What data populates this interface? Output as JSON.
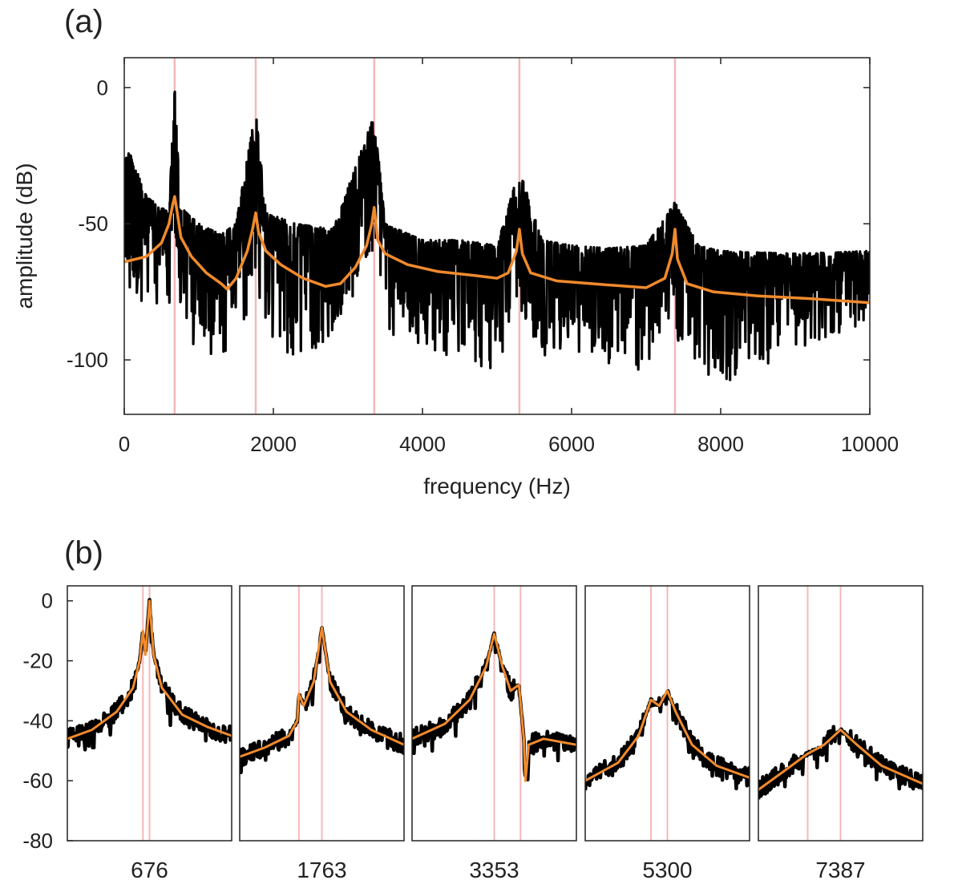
{
  "colors": {
    "measured": "#000000",
    "fit": "#f08a2c",
    "markers": "#f5b8b8",
    "axes": "#222222"
  },
  "chart_data": [
    {
      "panel": "(a)",
      "type": "line",
      "xlabel": "frequency (Hz)",
      "ylabel": "amplitude (dB)",
      "xlim": [
        0,
        10000
      ],
      "ylim": [
        -120,
        11
      ],
      "xticks": [
        0,
        2000,
        4000,
        6000,
        8000,
        10000
      ],
      "yticks": [
        0,
        -50,
        -100
      ],
      "grid": false,
      "legend": "none",
      "peak_markers": [
        676,
        1763,
        3353,
        5300,
        7387
      ],
      "series": [
        {
          "role": "fit",
          "x": [
            0,
            300,
            500,
            600,
            650,
            676,
            700,
            760,
            900,
            1100,
            1300,
            1380,
            1500,
            1650,
            1720,
            1763,
            1800,
            1900,
            2100,
            2400,
            2700,
            2900,
            3100,
            3250,
            3320,
            3353,
            3400,
            3500,
            3800,
            4200,
            4700,
            5000,
            5150,
            5260,
            5300,
            5340,
            5450,
            5800,
            6500,
            7000,
            7250,
            7350,
            7387,
            7420,
            7550,
            7900,
            8500,
            9200,
            10000
          ],
          "y": [
            -64,
            -62,
            -57,
            -50,
            -43,
            -40,
            -44,
            -55,
            -62,
            -68,
            -72,
            -74,
            -70,
            -60,
            -52,
            -46,
            -53,
            -60,
            -65,
            -70,
            -73,
            -72,
            -66,
            -58,
            -50,
            -44,
            -56,
            -61,
            -65,
            -67.5,
            -69,
            -70,
            -68,
            -60,
            -52,
            -61,
            -68,
            -71,
            -72.5,
            -73.5,
            -70,
            -61,
            -52,
            -63,
            -72,
            -75,
            -76.5,
            -77.5,
            -79
          ]
        },
        {
          "role": "measured-envelope",
          "x": [
            0,
            60,
            300,
            600,
            676,
            760,
            1000,
            1300,
            1500,
            1763,
            1900,
            2300,
            2800,
            3353,
            3500,
            4000,
            4500,
            5000,
            5300,
            5600,
            6000,
            6500,
            7000,
            7387,
            7700,
            8000,
            9000,
            10000
          ],
          "y_high": [
            -28,
            -23,
            -40,
            -46,
            0,
            -44,
            -50,
            -54,
            -50,
            -8,
            -46,
            -50,
            -52,
            -10,
            -50,
            -56,
            -56,
            -58,
            -30,
            -56,
            -58,
            -59,
            -58,
            -42,
            -58,
            -60,
            -61,
            -60
          ],
          "y_low": [
            -65,
            -75,
            -80,
            -82,
            -65,
            -88,
            -98,
            -104,
            -95,
            -75,
            -90,
            -102,
            -95,
            -60,
            -92,
            -100,
            -98,
            -108,
            -80,
            -100,
            -96,
            -102,
            -104,
            -96,
            -100,
            -112,
            -96,
            -88
          ]
        }
      ]
    },
    {
      "panel": "(b)",
      "type": "line",
      "ylim": [
        -80,
        5
      ],
      "yticks": [
        0,
        -20,
        -40,
        -60,
        -80
      ],
      "grid": false,
      "legend": "none",
      "subpanels": [
        {
          "xlabel": "676",
          "markers": [
            -0.08,
            0
          ],
          "fit": [
            [
              -1,
              -46
            ],
            [
              -0.7,
              -43
            ],
            [
              -0.4,
              -37
            ],
            [
              -0.2,
              -29
            ],
            [
              -0.12,
              -20
            ],
            [
              -0.08,
              -10
            ],
            [
              -0.05,
              -18
            ],
            [
              0,
              0
            ],
            [
              0.05,
              -18
            ],
            [
              0.15,
              -29
            ],
            [
              0.4,
              -38
            ],
            [
              0.7,
              -42
            ],
            [
              1,
              -45
            ]
          ]
        },
        {
          "xlabel": "1763",
          "markers": [
            -0.28,
            0
          ],
          "fit": [
            [
              -1,
              -52
            ],
            [
              -0.7,
              -49
            ],
            [
              -0.4,
              -45
            ],
            [
              -0.3,
              -40
            ],
            [
              -0.28,
              -31
            ],
            [
              -0.22,
              -35
            ],
            [
              -0.1,
              -27
            ],
            [
              0,
              -9
            ],
            [
              0.1,
              -27
            ],
            [
              0.3,
              -37
            ],
            [
              0.6,
              -43
            ],
            [
              1,
              -48
            ]
          ]
        },
        {
          "xlabel": "3353",
          "markers": [
            0,
            0.32
          ],
          "fit": [
            [
              -1,
              -46
            ],
            [
              -0.6,
              -41
            ],
            [
              -0.3,
              -33
            ],
            [
              -0.1,
              -22
            ],
            [
              0,
              -11
            ],
            [
              0.1,
              -22
            ],
            [
              0.2,
              -30
            ],
            [
              0.3,
              -28
            ],
            [
              0.36,
              -46
            ],
            [
              0.38,
              -60
            ],
            [
              0.42,
              -48
            ],
            [
              0.6,
              -46
            ],
            [
              1,
              -48
            ]
          ]
        },
        {
          "xlabel": "5300",
          "markers": [
            -0.2,
            0
          ],
          "fit": [
            [
              -1,
              -60
            ],
            [
              -0.6,
              -54
            ],
            [
              -0.35,
              -45
            ],
            [
              -0.2,
              -33
            ],
            [
              -0.1,
              -35
            ],
            [
              0,
              -30
            ],
            [
              0.1,
              -37
            ],
            [
              0.3,
              -48
            ],
            [
              0.6,
              -55
            ],
            [
              1,
              -59
            ]
          ]
        },
        {
          "xlabel": "7387",
          "markers": [
            -0.4,
            0
          ],
          "fit": [
            [
              -1,
              -63
            ],
            [
              -0.7,
              -57
            ],
            [
              -0.4,
              -51
            ],
            [
              -0.2,
              -48
            ],
            [
              0,
              -43
            ],
            [
              0.2,
              -48
            ],
            [
              0.5,
              -55
            ],
            [
              1,
              -61
            ]
          ]
        }
      ]
    }
  ]
}
